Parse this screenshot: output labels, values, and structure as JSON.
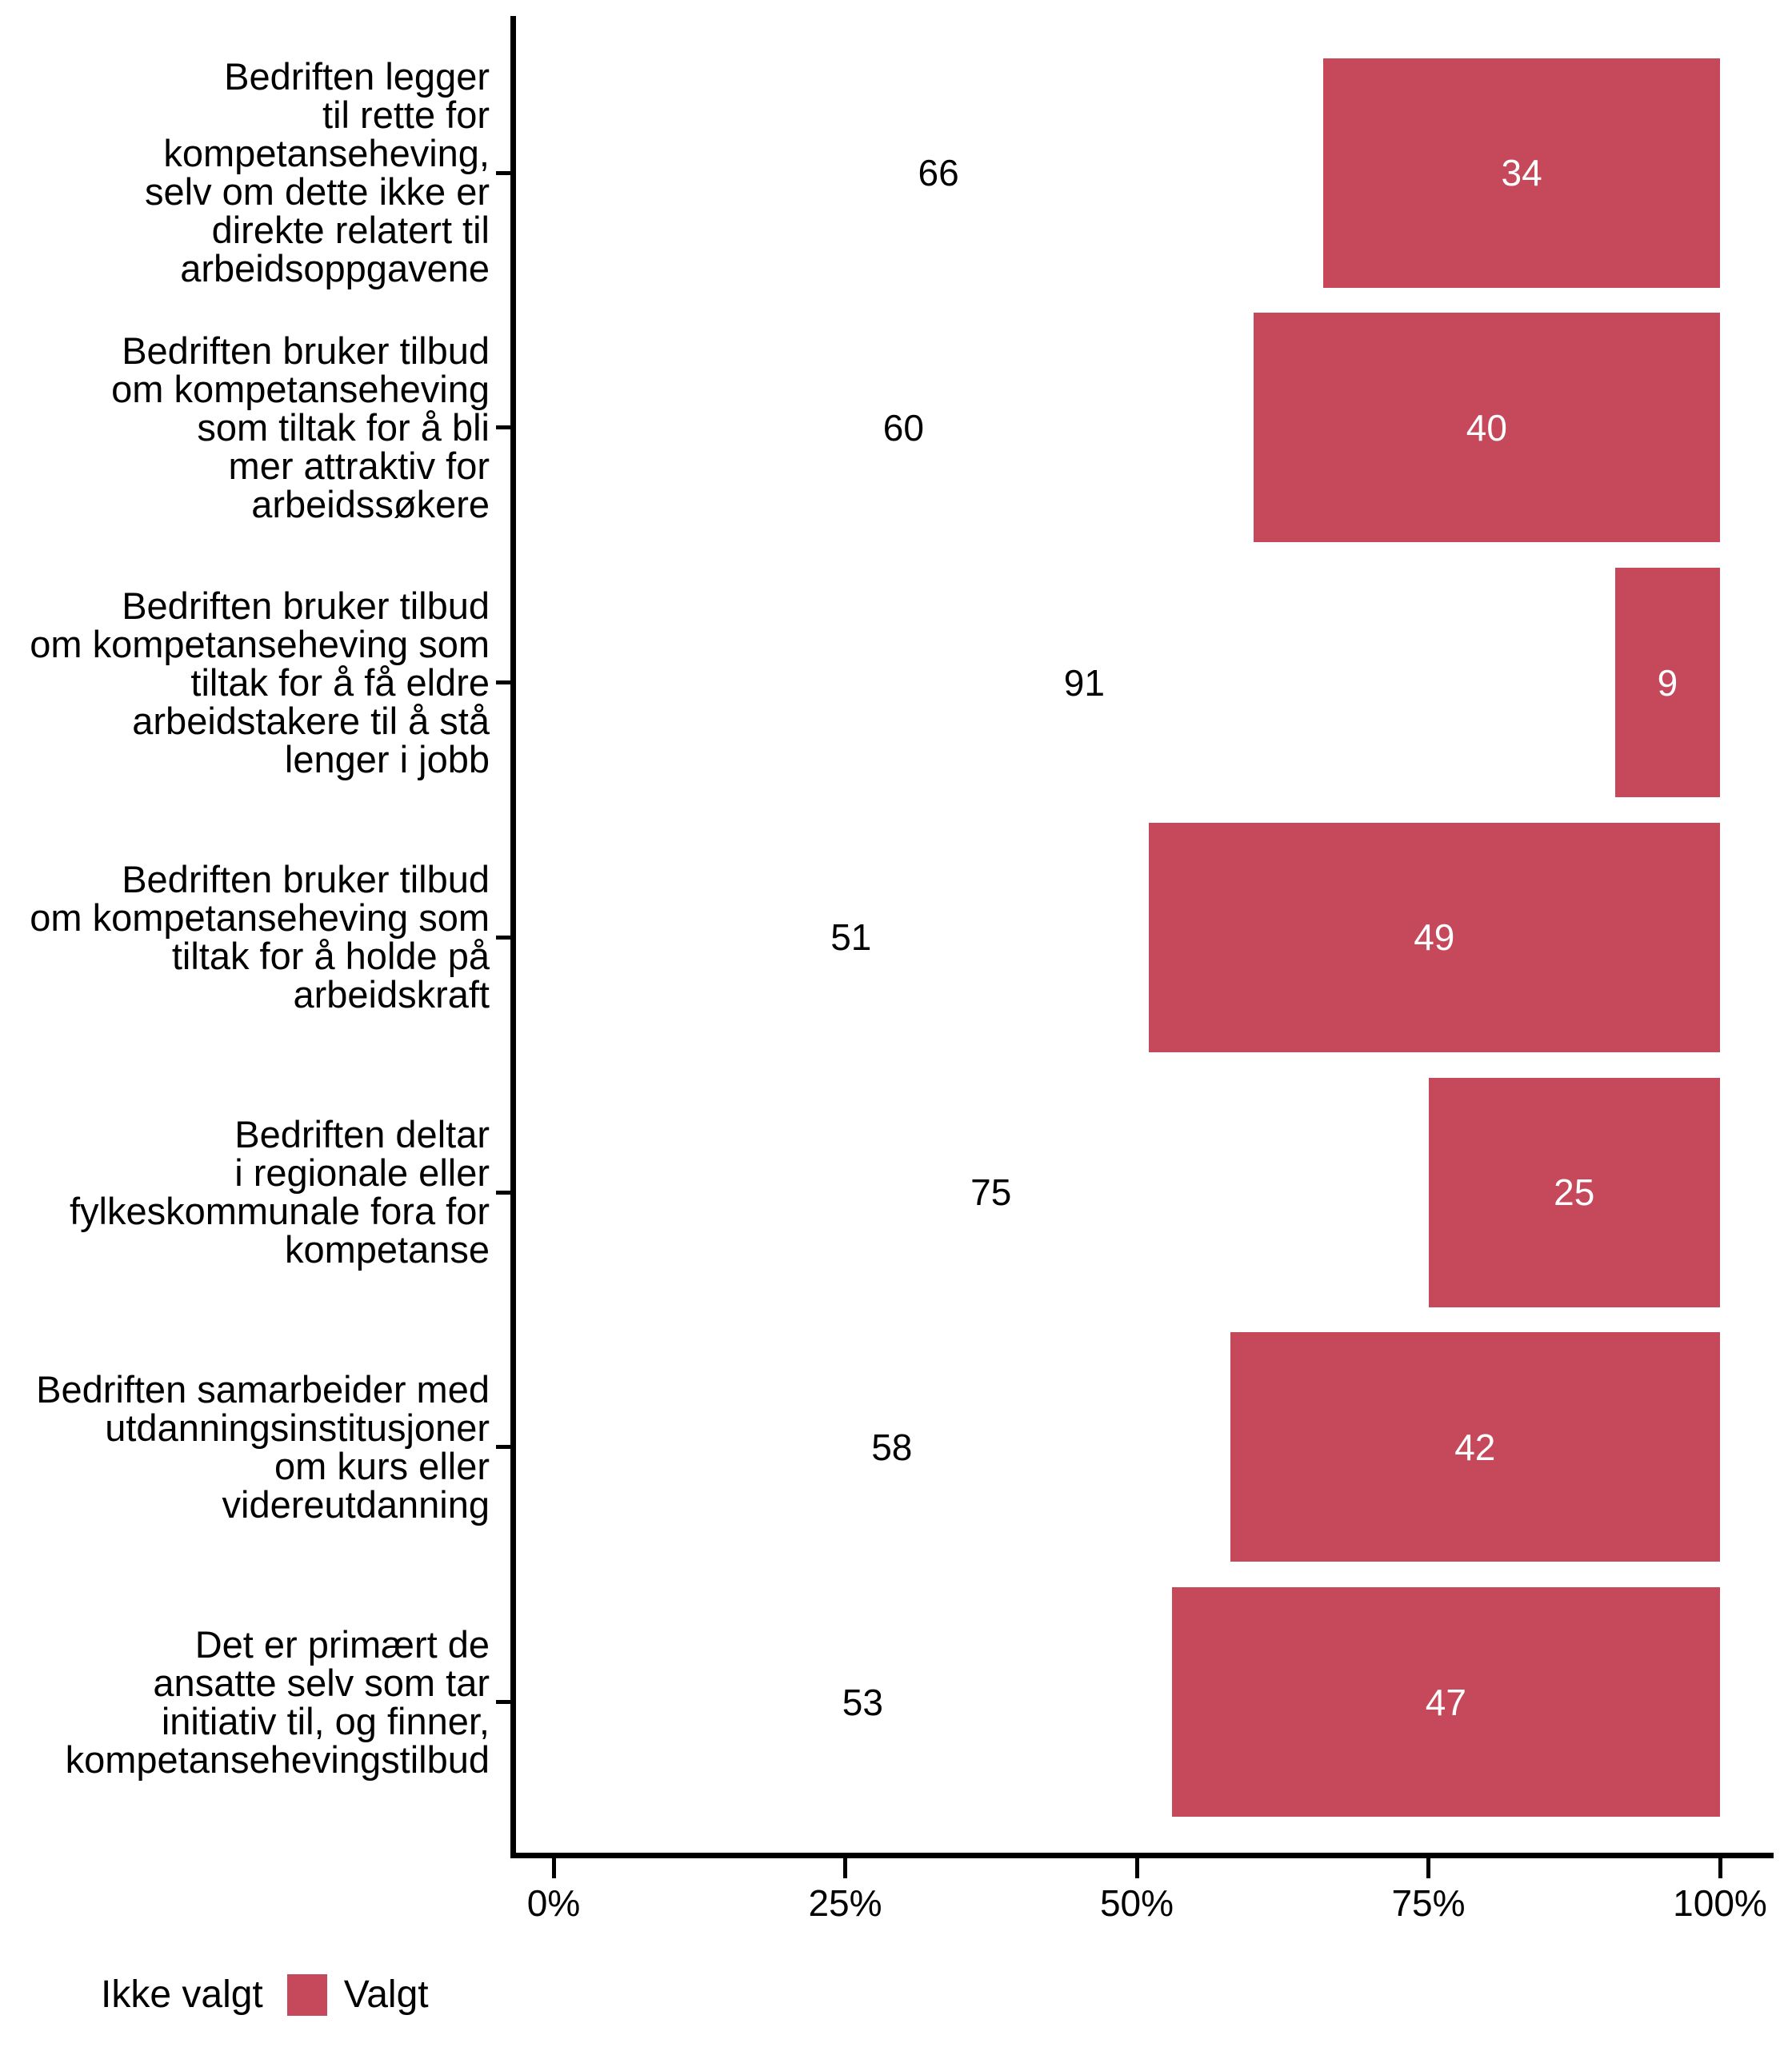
{
  "chart_data": {
    "type": "bar",
    "orientation": "horizontal-stacked",
    "xlim": [
      0,
      100
    ],
    "x_ticks": [
      "0%",
      "25%",
      "50%",
      "75%",
      "100%"
    ],
    "x_tick_values": [
      0,
      25,
      50,
      75,
      100
    ],
    "grid": "off",
    "legend_position": "bottom-left",
    "categories": [
      "Bedriften legger til rette for kompetanseheving, selv om dette ikke er direkte relatert til arbeidsoppgavene",
      "Bedriften bruker tilbud om kompetanseheving som tiltak for å bli mer attraktiv for arbeidssøkere",
      "Bedriften bruker tilbud om kompetanseheving som tiltak for å få eldre arbeidstakere til å stå lenger i jobb",
      "Bedriften bruker tilbud om kompetanseheving som tiltak for å holde på arbeidskraft",
      "Bedriften deltar i regionale eller fylkeskommunale fora for kompetanse",
      "Bedriften samarbeider med utdanningsinstitusjoner om kurs eller videreutdanning",
      "Det er primært de ansatte selv som tar initiativ til, og finner, kompetansehevingstilbud"
    ],
    "category_lines": [
      [
        "Bedriften legger",
        "til rette for",
        "kompetanseheving,",
        "selv om dette ikke er",
        "direkte relatert til",
        "arbeidsoppgavene"
      ],
      [
        "Bedriften bruker tilbud",
        "om kompetanseheving",
        "som tiltak for å bli",
        "mer attraktiv for",
        "arbeidssøkere"
      ],
      [
        "Bedriften bruker tilbud",
        "om kompetanseheving som",
        "tiltak for å få eldre",
        "arbeidstakere til å stå",
        "lenger i jobb"
      ],
      [
        "Bedriften bruker tilbud",
        "om kompetanseheving som",
        "tiltak for å holde på",
        "arbeidskraft"
      ],
      [
        "Bedriften deltar",
        "i regionale eller",
        "fylkeskommunale fora for",
        "kompetanse"
      ],
      [
        "Bedriften samarbeider med",
        "utdanningsinstitusjoner",
        "om kurs eller",
        "videreutdanning"
      ],
      [
        "Det er primært de",
        "ansatte selv som tar",
        "initiativ til, og finner,",
        "kompetansehevingstilbud"
      ]
    ],
    "series": [
      {
        "name": "Ikke valgt",
        "color": "#ffffff",
        "label_color": "#000000",
        "values": [
          66,
          60,
          91,
          51,
          75,
          58,
          53
        ]
      },
      {
        "name": "Valgt",
        "color": "#c5495b",
        "label_color": "#ffffff",
        "values": [
          34,
          40,
          9,
          49,
          25,
          42,
          47
        ]
      }
    ]
  },
  "legend": {
    "items": [
      {
        "label": "Ikke valgt",
        "color": "#ffffff"
      },
      {
        "label": "Valgt",
        "color": "#c5495b"
      }
    ]
  },
  "colors": {
    "axis": "#000000",
    "background": "#ffffff",
    "bar_fill": "#c5495b"
  }
}
